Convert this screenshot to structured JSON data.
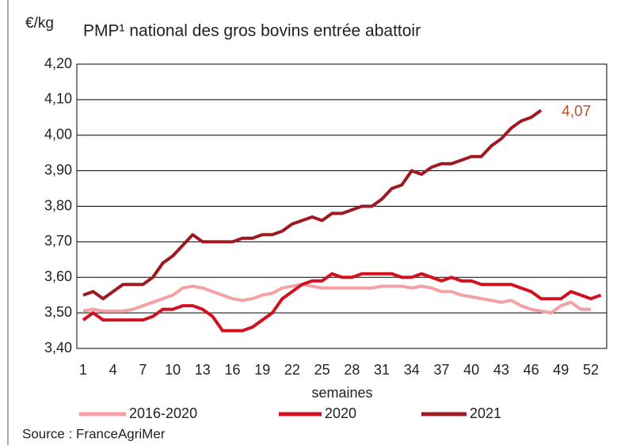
{
  "chart_data": {
    "type": "line",
    "title": "PMP¹ national des gros bovins entrée abattoir",
    "ylabel": "€/kg",
    "xlabel": "semaines",
    "source": "Source : FranceAgriMer",
    "categories": [
      1,
      null,
      null,
      4,
      null,
      null,
      7,
      null,
      null,
      10,
      null,
      null,
      13,
      null,
      null,
      16,
      null,
      null,
      19,
      null,
      null,
      22,
      null,
      null,
      25,
      null,
      null,
      28,
      null,
      null,
      31,
      null,
      null,
      34,
      null,
      null,
      37,
      null,
      null,
      40,
      null,
      null,
      43,
      null,
      null,
      46,
      null,
      null,
      49,
      null,
      null,
      52,
      null
    ],
    "ylim": [
      3.4,
      4.2
    ],
    "yticks": [
      {
        "value": 3.4,
        "label": "3,40"
      },
      {
        "value": 3.5,
        "label": "3,50"
      },
      {
        "value": 3.6,
        "label": "3,60"
      },
      {
        "value": 3.7,
        "label": "3,70"
      },
      {
        "value": 3.8,
        "label": "3,80"
      },
      {
        "value": 3.9,
        "label": "3,90"
      },
      {
        "value": 4.0,
        "label": "4,00"
      },
      {
        "value": 4.1,
        "label": "4,10"
      },
      {
        "value": 4.2,
        "label": "4,20"
      }
    ],
    "grid": true,
    "series": [
      {
        "name": "2016-2020",
        "color": "#f2a2a4",
        "values": [
          3.505,
          3.51,
          3.505,
          3.505,
          3.505,
          3.51,
          3.52,
          3.53,
          3.54,
          3.55,
          3.57,
          3.575,
          3.57,
          3.56,
          3.55,
          3.54,
          3.535,
          3.54,
          3.55,
          3.555,
          3.57,
          3.575,
          3.58,
          3.575,
          3.57,
          3.57,
          3.57,
          3.57,
          3.57,
          3.57,
          3.575,
          3.575,
          3.575,
          3.57,
          3.575,
          3.57,
          3.56,
          3.56,
          3.55,
          3.545,
          3.54,
          3.535,
          3.53,
          3.535,
          3.52,
          3.51,
          3.505,
          3.5,
          3.52,
          3.53,
          3.51,
          3.51,
          null
        ]
      },
      {
        "name": "2020",
        "color": "#d2101e",
        "values": [
          3.48,
          3.5,
          3.48,
          3.48,
          3.48,
          3.48,
          3.48,
          3.49,
          3.51,
          3.51,
          3.52,
          3.52,
          3.51,
          3.49,
          3.45,
          3.45,
          3.45,
          3.46,
          3.48,
          3.5,
          3.54,
          3.56,
          3.58,
          3.59,
          3.59,
          3.61,
          3.6,
          3.6,
          3.61,
          3.61,
          3.61,
          3.61,
          3.6,
          3.6,
          3.61,
          3.6,
          3.59,
          3.6,
          3.59,
          3.59,
          3.58,
          3.58,
          3.58,
          3.58,
          3.57,
          3.56,
          3.54,
          3.54,
          3.54,
          3.56,
          3.55,
          3.54,
          3.55
        ]
      },
      {
        "name": "2021",
        "color": "#9e1a22",
        "values": [
          3.55,
          3.56,
          3.54,
          3.56,
          3.58,
          3.58,
          3.58,
          3.6,
          3.64,
          3.66,
          3.69,
          3.72,
          3.7,
          3.7,
          3.7,
          3.7,
          3.71,
          3.71,
          3.72,
          3.72,
          3.73,
          3.75,
          3.76,
          3.77,
          3.76,
          3.78,
          3.78,
          3.79,
          3.8,
          3.8,
          3.82,
          3.85,
          3.86,
          3.9,
          3.89,
          3.91,
          3.92,
          3.92,
          3.93,
          3.94,
          3.94,
          3.97,
          3.99,
          4.02,
          4.04,
          4.05,
          4.07,
          null,
          null,
          null,
          null,
          null,
          null
        ],
        "value_labels": [
          null,
          null,
          null,
          null,
          null,
          null,
          null,
          null,
          null,
          null,
          null,
          null,
          null,
          null,
          null,
          null,
          null,
          null,
          null,
          null,
          null,
          null,
          null,
          null,
          null,
          null,
          null,
          null,
          null,
          null,
          null,
          null,
          null,
          null,
          null,
          null,
          null,
          null,
          null,
          null,
          null,
          null,
          null,
          null,
          null,
          null,
          "4,07",
          null,
          null,
          null,
          null,
          null,
          null
        ]
      }
    ]
  }
}
